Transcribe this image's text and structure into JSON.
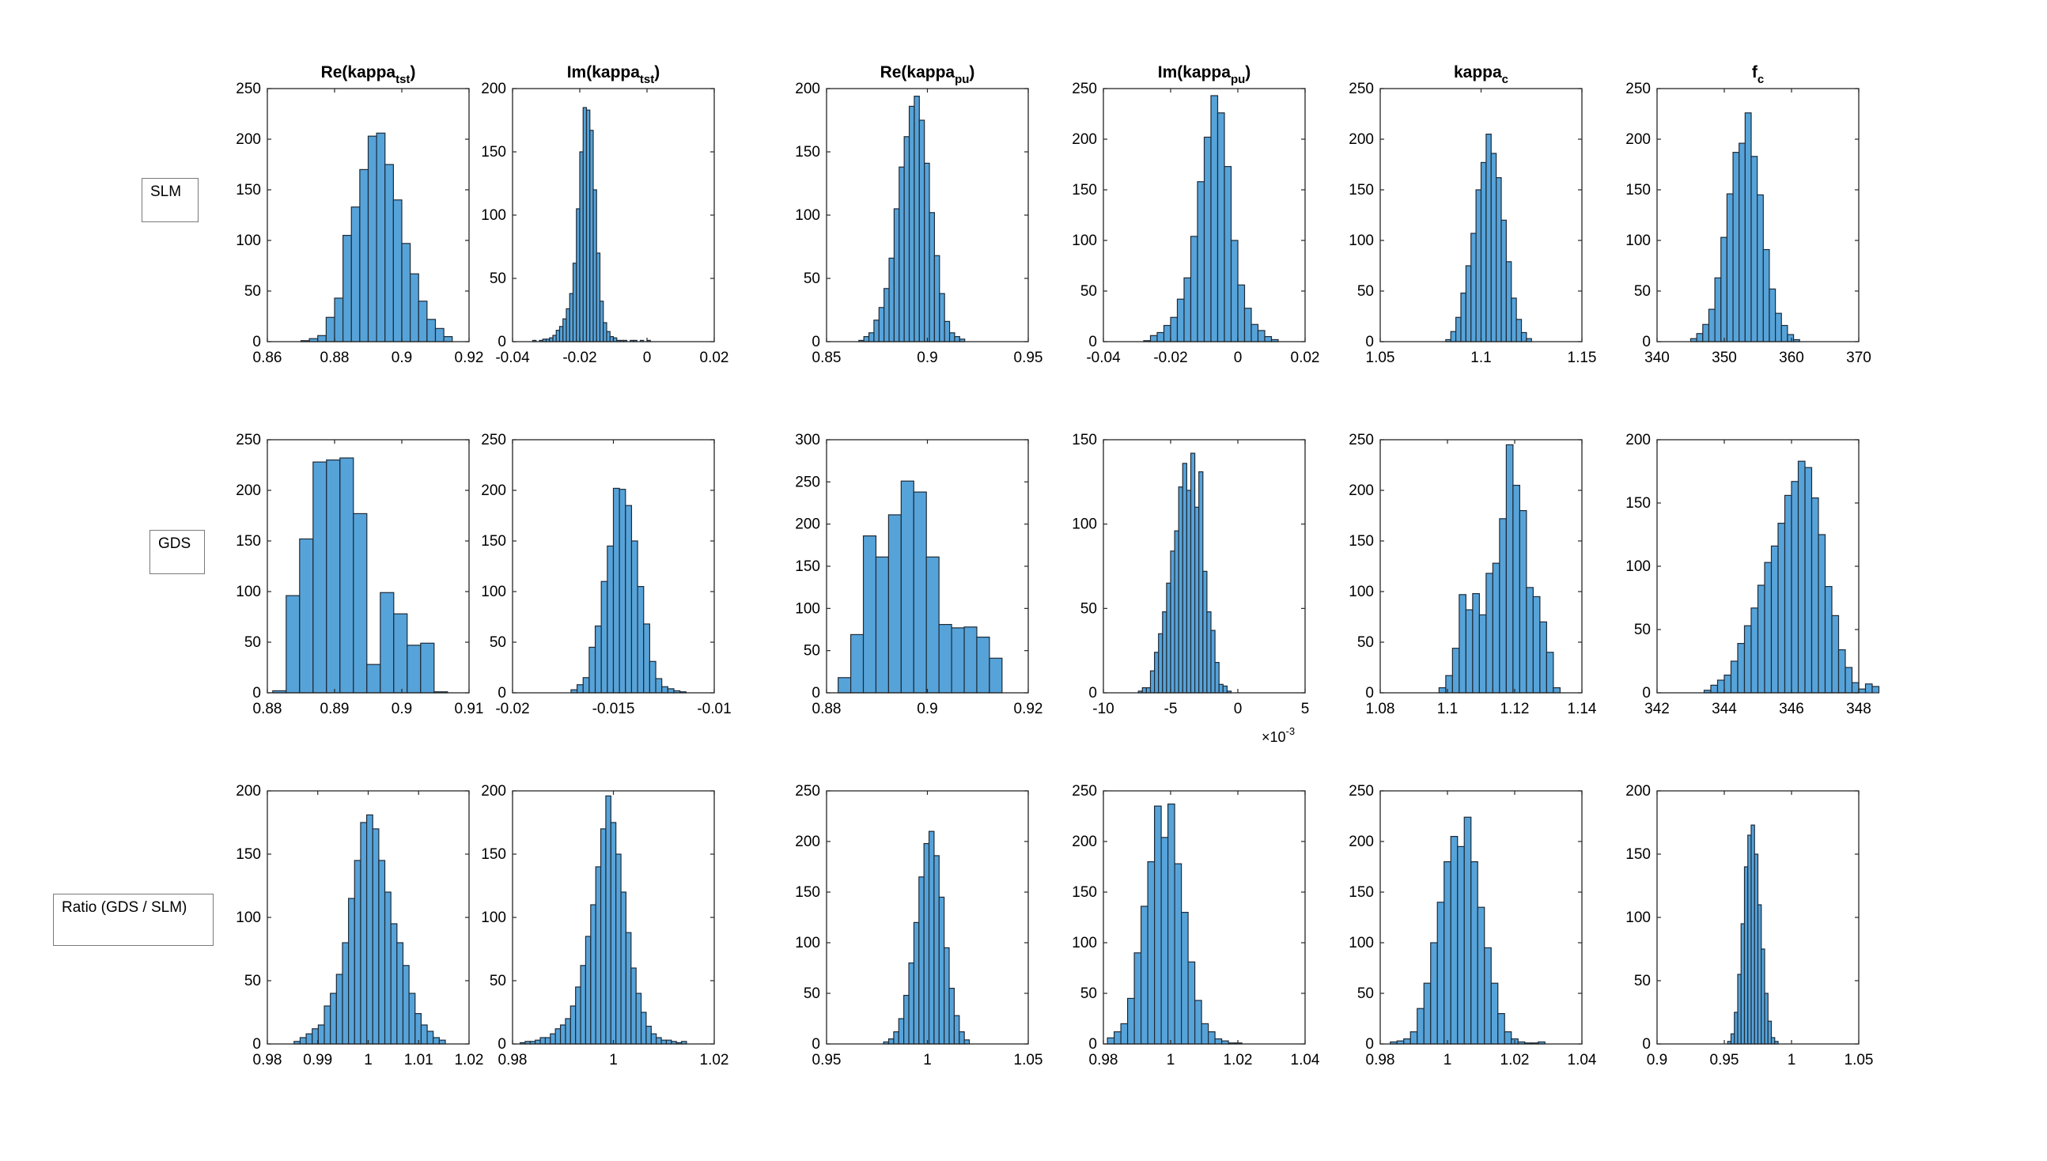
{
  "figure": {
    "row_labels": [
      "SLM",
      "GDS",
      "Ratio (GDS / SLM)"
    ],
    "exponent_base": "×10",
    "exponent_power": "-3"
  },
  "style": {
    "bar_fill": "#56a3d9",
    "bar_edge": "#1f2a36",
    "axis": "#262626"
  },
  "chart_data": [
    {
      "type": "bar",
      "row": 0,
      "col": 0,
      "title": "Re(kappa",
      "title_sub": "tst",
      "title_end": ")",
      "xlim": [
        0.86,
        0.92
      ],
      "xticks": [
        "0.86",
        "0.88",
        "0.9",
        "0.92"
      ],
      "ylim": [
        0,
        250
      ],
      "yticks": [
        "0",
        "50",
        "100",
        "150",
        "200",
        "250"
      ],
      "bin_start": 0.87,
      "bin_width": 0.0025,
      "counts": [
        1,
        3,
        6,
        24,
        43,
        105,
        133,
        170,
        203,
        206,
        175,
        140,
        97,
        67,
        40,
        22,
        13,
        5
      ]
    },
    {
      "type": "bar",
      "row": 0,
      "col": 1,
      "title": "Im(kappa",
      "title_sub": "tst",
      "title_end": ")",
      "xlim": [
        -0.04,
        0.02
      ],
      "xticks": [
        "-0.04",
        "-0.02",
        "0",
        "0.02"
      ],
      "ylim": [
        0,
        200
      ],
      "yticks": [
        "0",
        "50",
        "100",
        "150",
        "200"
      ],
      "bin_start": -0.034,
      "bin_width": 0.001,
      "counts": [
        1,
        0,
        1,
        2,
        2,
        3,
        5,
        9,
        12,
        18,
        26,
        38,
        62,
        105,
        150,
        185,
        183,
        167,
        120,
        70,
        32,
        15,
        8,
        4,
        3,
        1,
        1,
        1,
        0,
        1,
        1,
        0,
        1,
        0,
        1
      ]
    },
    {
      "type": "bar",
      "row": 0,
      "col": 2,
      "title": "Re(kappa",
      "title_sub": "pu",
      "title_end": ")",
      "xlim": [
        0.85,
        0.95
      ],
      "xticks": [
        "0.85",
        "0.9",
        "0.95"
      ],
      "ylim": [
        0,
        200
      ],
      "yticks": [
        "0",
        "50",
        "100",
        "150",
        "200"
      ],
      "bin_start": 0.866,
      "bin_width": 0.0025,
      "counts": [
        1,
        4,
        7,
        17,
        27,
        42,
        66,
        105,
        138,
        162,
        186,
        194,
        175,
        141,
        102,
        68,
        38,
        16,
        7,
        4,
        2
      ]
    },
    {
      "type": "bar",
      "row": 0,
      "col": 3,
      "title": "Im(kappa",
      "title_sub": "pu",
      "title_end": ")",
      "xlim": [
        -0.04,
        0.02
      ],
      "xticks": [
        "-0.04",
        "-0.02",
        "0",
        "0.02"
      ],
      "ylim": [
        0,
        250
      ],
      "yticks": [
        "0",
        "50",
        "100",
        "150",
        "200",
        "250"
      ],
      "bin_start": -0.028,
      "bin_width": 0.002,
      "counts": [
        1,
        6,
        9,
        16,
        24,
        42,
        63,
        104,
        158,
        202,
        243,
        226,
        173,
        100,
        56,
        33,
        17,
        11,
        5,
        2
      ]
    },
    {
      "type": "bar",
      "row": 0,
      "col": 4,
      "title": "kappa",
      "title_sub": "c",
      "title_end": "",
      "xlim": [
        1.05,
        1.15
      ],
      "xticks": [
        "1.05",
        "1.1",
        "1.15"
      ],
      "ylim": [
        0,
        250
      ],
      "yticks": [
        "0",
        "50",
        "100",
        "150",
        "200",
        "250"
      ],
      "bin_start": 1.0825,
      "bin_width": 0.0025,
      "counts": [
        2,
        10,
        24,
        48,
        75,
        107,
        150,
        177,
        205,
        186,
        162,
        120,
        79,
        43,
        22,
        9,
        3
      ]
    },
    {
      "type": "bar",
      "row": 0,
      "col": 5,
      "title": "f",
      "title_sub": "c",
      "title_end": "",
      "xlim": [
        340,
        370
      ],
      "xticks": [
        "340",
        "350",
        "360",
        "370"
      ],
      "ylim": [
        0,
        250
      ],
      "yticks": [
        "0",
        "50",
        "100",
        "150",
        "200",
        "250"
      ],
      "bin_start": 345,
      "bin_width": 0.9,
      "counts": [
        3,
        8,
        17,
        32,
        63,
        103,
        146,
        187,
        196,
        226,
        183,
        145,
        91,
        52,
        28,
        16,
        7,
        2
      ]
    },
    {
      "type": "bar",
      "row": 1,
      "col": 0,
      "title": "",
      "title_sub": "",
      "title_end": "",
      "xlim": [
        0.88,
        0.91
      ],
      "xticks": [
        "0.88",
        "0.89",
        "0.9",
        "0.91"
      ],
      "ylim": [
        0,
        250
      ],
      "yticks": [
        "0",
        "50",
        "100",
        "150",
        "200",
        "250"
      ],
      "bin_start": 0.8808,
      "bin_width": 0.002,
      "counts": [
        2,
        96,
        152,
        228,
        230,
        232,
        177,
        28,
        99,
        78,
        47,
        49,
        1
      ]
    },
    {
      "type": "bar",
      "row": 1,
      "col": 1,
      "title": "",
      "title_sub": "",
      "title_end": "",
      "xlim": [
        -0.02,
        -0.01
      ],
      "xticks": [
        "-0.02",
        "-0.015",
        "-0.01"
      ],
      "ylim": [
        0,
        250
      ],
      "yticks": [
        "0",
        "50",
        "100",
        "150",
        "200",
        "250"
      ],
      "bin_start": -0.0171,
      "bin_width": 0.0003,
      "counts": [
        3,
        8,
        15,
        45,
        66,
        110,
        145,
        202,
        201,
        185,
        150,
        105,
        68,
        31,
        14,
        6,
        4,
        2,
        1
      ]
    },
    {
      "type": "bar",
      "row": 1,
      "col": 2,
      "title": "",
      "title_sub": "",
      "title_end": "",
      "xlim": [
        0.88,
        0.92
      ],
      "xticks": [
        "0.88",
        "0.9",
        "0.92"
      ],
      "ylim": [
        0,
        300
      ],
      "yticks": [
        "0",
        "50",
        "100",
        "150",
        "200",
        "250",
        "300"
      ],
      "bin_start": 0.8823,
      "bin_width": 0.0025,
      "counts": [
        18,
        69,
        186,
        161,
        211,
        251,
        238,
        161,
        81,
        77,
        78,
        66,
        41
      ]
    },
    {
      "type": "bar",
      "row": 1,
      "col": 3,
      "title": "",
      "title_sub": "",
      "title_end": "",
      "xlim": [
        -10,
        5
      ],
      "xticks": [
        "-10",
        "-5",
        "0",
        "5"
      ],
      "ylim": [
        0,
        150
      ],
      "yticks": [
        "0",
        "50",
        "100",
        "150"
      ],
      "bin_start": -7.4,
      "bin_width": 0.3,
      "counts": [
        1,
        3,
        3,
        13,
        24,
        35,
        48,
        65,
        84,
        96,
        122,
        136,
        120,
        142,
        110,
        131,
        72,
        48,
        37,
        18,
        5,
        4,
        1
      ]
    },
    {
      "type": "bar",
      "row": 1,
      "col": 4,
      "title": "",
      "title_sub": "",
      "title_end": "",
      "xlim": [
        1.08,
        1.14
      ],
      "xticks": [
        "1.08",
        "1.1",
        "1.12",
        "1.14"
      ],
      "ylim": [
        0,
        250
      ],
      "yticks": [
        "0",
        "50",
        "100",
        "150",
        "200",
        "250"
      ],
      "bin_start": 1.0975,
      "bin_width": 0.002,
      "counts": [
        5,
        17,
        44,
        97,
        82,
        98,
        77,
        118,
        128,
        172,
        245,
        205,
        180,
        104,
        95,
        70,
        40,
        5
      ]
    },
    {
      "type": "bar",
      "row": 1,
      "col": 5,
      "title": "",
      "title_sub": "",
      "title_end": "",
      "xlim": [
        342,
        348
      ],
      "xticks": [
        "342",
        "344",
        "346",
        "348"
      ],
      "ylim": [
        0,
        200
      ],
      "yticks": [
        "0",
        "50",
        "100",
        "150",
        "200"
      ],
      "bin_start": 343.4,
      "bin_width": 0.2,
      "counts": [
        2,
        6,
        10,
        14,
        25,
        39,
        53,
        67,
        85,
        103,
        116,
        134,
        156,
        167,
        183,
        178,
        154,
        125,
        84,
        61,
        34,
        20,
        8,
        3,
        7,
        5
      ]
    },
    {
      "type": "bar",
      "row": 2,
      "col": 0,
      "title": "",
      "title_sub": "",
      "title_end": "",
      "xlim": [
        0.98,
        1.02
      ],
      "xticks": [
        "0.98",
        "0.99",
        "1",
        "1.01",
        "1.02"
      ],
      "ylim": [
        0,
        200
      ],
      "yticks": [
        "0",
        "50",
        "100",
        "150",
        "200"
      ],
      "bin_start": 0.9853,
      "bin_width": 0.0012,
      "counts": [
        2,
        5,
        8,
        12,
        15,
        30,
        40,
        55,
        80,
        115,
        145,
        175,
        181,
        170,
        145,
        120,
        95,
        80,
        62,
        40,
        24,
        15,
        10,
        5,
        3
      ]
    },
    {
      "type": "bar",
      "row": 2,
      "col": 1,
      "title": "",
      "title_sub": "",
      "title_end": "",
      "xlim": [
        0.98,
        1.02
      ],
      "xticks": [
        "0.98",
        "1",
        "1.02"
      ],
      "ylim": [
        0,
        200
      ],
      "yticks": [
        "0",
        "50",
        "100",
        "150",
        "200"
      ],
      "bin_start": 0.9815,
      "bin_width": 0.001,
      "counts": [
        1,
        2,
        2,
        3,
        5,
        5,
        8,
        12,
        15,
        20,
        30,
        45,
        62,
        85,
        110,
        140,
        170,
        196,
        175,
        150,
        120,
        88,
        60,
        40,
        25,
        14,
        8,
        5,
        3,
        3,
        2,
        1,
        2
      ]
    },
    {
      "type": "bar",
      "row": 2,
      "col": 2,
      "title": "",
      "title_sub": "",
      "title_end": "",
      "xlim": [
        0.95,
        1.05
      ],
      "xticks": [
        "0.95",
        "1",
        "1.05"
      ],
      "ylim": [
        0,
        250
      ],
      "yticks": [
        "0",
        "50",
        "100",
        "150",
        "200",
        "250"
      ],
      "bin_start": 0.9783,
      "bin_width": 0.0025,
      "counts": [
        2,
        5,
        12,
        25,
        48,
        80,
        120,
        165,
        198,
        210,
        186,
        145,
        95,
        55,
        28,
        12,
        4
      ]
    },
    {
      "type": "bar",
      "row": 2,
      "col": 3,
      "title": "",
      "title_sub": "",
      "title_end": "",
      "xlim": [
        0.98,
        1.04
      ],
      "xticks": [
        "0.98",
        "1",
        "1.02",
        "1.04"
      ],
      "ylim": [
        0,
        250
      ],
      "yticks": [
        "0",
        "50",
        "100",
        "150",
        "200",
        "250"
      ],
      "bin_start": 0.9812,
      "bin_width": 0.002,
      "counts": [
        6,
        12,
        20,
        45,
        90,
        136,
        180,
        235,
        204,
        237,
        178,
        130,
        81,
        43,
        20,
        12,
        5,
        3,
        1,
        1
      ]
    },
    {
      "type": "bar",
      "row": 2,
      "col": 4,
      "title": "",
      "title_sub": "",
      "title_end": "",
      "xlim": [
        0.98,
        1.04
      ],
      "xticks": [
        "0.98",
        "1",
        "1.02",
        "1.04"
      ],
      "ylim": [
        0,
        250
      ],
      "yticks": [
        "0",
        "50",
        "100",
        "150",
        "200",
        "250"
      ],
      "bin_start": 0.983,
      "bin_width": 0.002,
      "counts": [
        2,
        3,
        5,
        12,
        35,
        60,
        100,
        140,
        180,
        205,
        195,
        224,
        180,
        135,
        95,
        60,
        30,
        12,
        5,
        2,
        1,
        1,
        2
      ]
    },
    {
      "type": "bar",
      "row": 2,
      "col": 5,
      "title": "",
      "title_sub": "",
      "title_end": "",
      "xlim": [
        0.9,
        1.05
      ],
      "xticks": [
        "0.9",
        "0.95",
        "1",
        "1.05"
      ],
      "ylim": [
        0,
        200
      ],
      "yticks": [
        "0",
        "50",
        "100",
        "150",
        "200"
      ],
      "bin_start": 0.9525,
      "bin_width": 0.0025,
      "counts": [
        2,
        8,
        25,
        55,
        95,
        140,
        165,
        173,
        150,
        110,
        75,
        40,
        18,
        5,
        2
      ]
    }
  ]
}
